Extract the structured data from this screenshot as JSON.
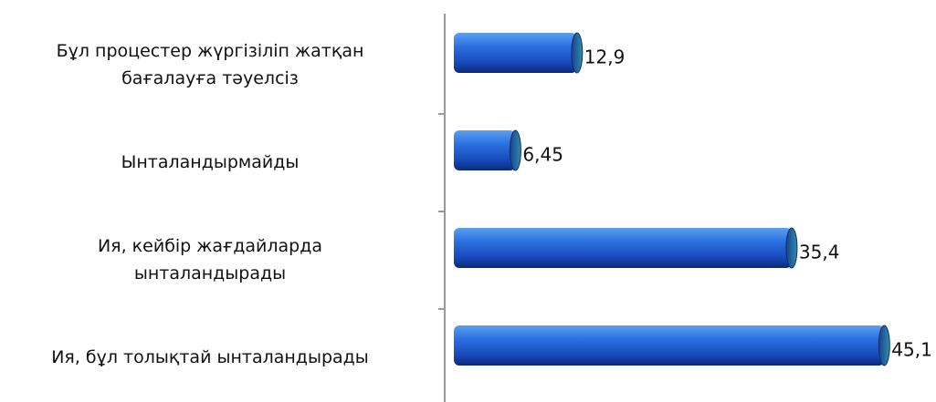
{
  "chart_data": {
    "type": "bar",
    "orientation": "horizontal",
    "categories": [
      "Бұл процестер жүргізіліп жатқан\nбағалауға тәуелсіз",
      "Ынталандырмайды",
      "Ия, кейбір жағдайларда\nынталандырады",
      "Ия, бұл толықтай ынталандырады"
    ],
    "values": [
      12.9,
      6.45,
      35.4,
      45.1
    ],
    "value_labels": [
      "12,9",
      "6,45",
      "35,4",
      "45,1"
    ],
    "color": "#1f5fd6"
  }
}
